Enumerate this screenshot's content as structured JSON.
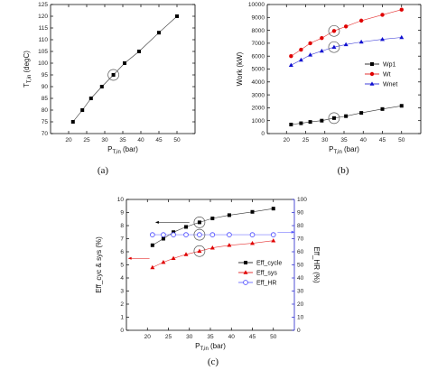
{
  "panel_labels": [
    "(a)",
    "(b)",
    "(c)"
  ],
  "chart_data": [
    {
      "type": "line",
      "panel": "(a)",
      "xlabel": "P",
      "xlabel_sub": "T,in",
      "xlabel_unit": " (bar)",
      "ylabel": "T",
      "ylabel_sub": "T,in",
      "ylabel_unit": " (degC)",
      "xlim": [
        15,
        55
      ],
      "xticks": [
        20,
        25,
        30,
        35,
        40,
        45,
        50
      ],
      "ylim": [
        70,
        125
      ],
      "yticks": [
        70,
        75,
        80,
        85,
        90,
        95,
        100,
        105,
        110,
        115,
        120,
        125
      ],
      "series": [
        {
          "color": "#000000",
          "marker": "square",
          "x": [
            21.2,
            23.8,
            26.2,
            29.2,
            32.4,
            35.5,
            39.5,
            45,
            50
          ],
          "y": [
            75,
            80,
            85,
            90,
            95,
            100,
            105,
            113,
            120
          ]
        }
      ],
      "circled": [
        {
          "x": 32.4,
          "y": 95
        }
      ]
    },
    {
      "type": "line",
      "panel": "(b)",
      "xlabel": "P",
      "xlabel_sub": "T,in",
      "xlabel_unit": " (bar)",
      "ylabel": "Work (kW)",
      "xlim": [
        15,
        55
      ],
      "xticks": [
        20,
        25,
        30,
        35,
        40,
        45,
        50
      ],
      "ylim": [
        0,
        10000
      ],
      "yticks": [
        0,
        1000,
        2000,
        3000,
        4000,
        5000,
        6000,
        7000,
        8000,
        9000,
        10000
      ],
      "series": [
        {
          "name": "Wp1",
          "color": "#000000",
          "marker": "square",
          "x": [
            21.2,
            23.8,
            26.2,
            29.2,
            32.4,
            35.5,
            39.5,
            45,
            50
          ],
          "y": [
            700,
            800,
            900,
            1000,
            1200,
            1350,
            1600,
            1900,
            2150
          ]
        },
        {
          "name": "Wt",
          "color": "#e00000",
          "marker": "circle",
          "x": [
            21.2,
            23.8,
            26.2,
            29.2,
            32.4,
            35.5,
            39.5,
            45,
            50
          ],
          "y": [
            6000,
            6500,
            7000,
            7400,
            7950,
            8300,
            8750,
            9200,
            9600
          ]
        },
        {
          "name": "Wnet",
          "color": "#1010d0",
          "marker": "triangle",
          "x": [
            21.2,
            23.8,
            26.2,
            29.2,
            32.4,
            35.5,
            39.5,
            45,
            50
          ],
          "y": [
            5300,
            5700,
            6100,
            6400,
            6700,
            6900,
            7100,
            7300,
            7450
          ]
        }
      ],
      "circled": [
        {
          "x": 32.4,
          "y": 7950
        },
        {
          "x": 32.4,
          "y": 6700
        },
        {
          "x": 32.4,
          "y": 1200
        }
      ],
      "legend": "center-right"
    },
    {
      "type": "line",
      "panel": "(c)",
      "xlabel": "P",
      "xlabel_sub": "T,in",
      "xlabel_unit": " (bar)",
      "ylabel": "Eff_cyc & sys (%)",
      "ylabel_right": "Eff_HR (%)",
      "xlim": [
        15,
        55
      ],
      "xticks": [
        20,
        25,
        30,
        35,
        40,
        45,
        50
      ],
      "ylim": [
        0,
        10
      ],
      "yticks": [
        0,
        1,
        2,
        3,
        4,
        5,
        6,
        7,
        8,
        9,
        10
      ],
      "ylim_right": [
        0,
        100
      ],
      "yticks_right": [
        0,
        10,
        20,
        30,
        40,
        50,
        60,
        70,
        80,
        90,
        100
      ],
      "series": [
        {
          "name": "Eff_cycle",
          "color": "#000000",
          "marker": "square",
          "axis": "left",
          "x": [
            21.2,
            23.8,
            26.2,
            29.2,
            32.4,
            35.5,
            39.5,
            45,
            50
          ],
          "y": [
            6.5,
            7.0,
            7.5,
            7.9,
            8.25,
            8.55,
            8.8,
            9.05,
            9.3
          ]
        },
        {
          "name": "Eff_sys",
          "color": "#e00000",
          "marker": "triangle",
          "axis": "left",
          "x": [
            21.2,
            23.8,
            26.2,
            29.2,
            32.4,
            35.5,
            39.5,
            45,
            50
          ],
          "y": [
            4.8,
            5.2,
            5.5,
            5.8,
            6.05,
            6.3,
            6.5,
            6.65,
            6.85
          ]
        },
        {
          "name": "Eff_HR",
          "color": "#5555ff",
          "marker": "open-circle",
          "axis": "right",
          "x": [
            21.2,
            23.8,
            26.2,
            29.2,
            32.4,
            35.5,
            39.5,
            45,
            50
          ],
          "y": [
            73,
            73,
            73,
            73,
            73,
            73,
            73,
            73,
            73
          ]
        }
      ],
      "circled": [
        {
          "x": 32.4,
          "y": 8.25
        },
        {
          "x": 32.4,
          "y": 7.3
        },
        {
          "x": 32.4,
          "y": 6.05
        }
      ],
      "legend": "center-right"
    }
  ]
}
